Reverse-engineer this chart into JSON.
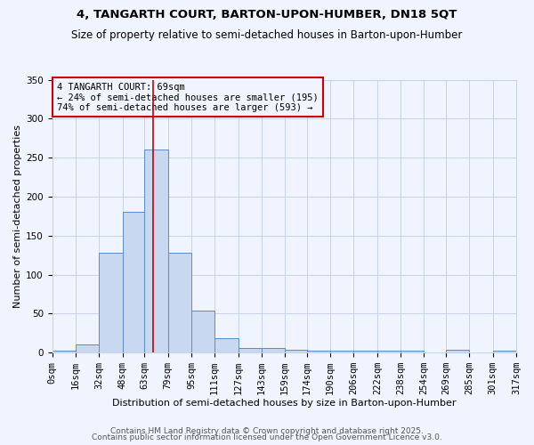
{
  "title1": "4, TANGARTH COURT, BARTON-UPON-HUMBER, DN18 5QT",
  "title2": "Size of property relative to semi-detached houses in Barton-upon-Humber",
  "xlabel": "Distribution of semi-detached houses by size in Barton-upon-Humber",
  "ylabel": "Number of semi-detached properties",
  "bin_edges": [
    0,
    16,
    32,
    48,
    63,
    79,
    95,
    111,
    127,
    143,
    159,
    174,
    190,
    206,
    222,
    238,
    254,
    269,
    285,
    301,
    317
  ],
  "bin_labels": [
    "0sqm",
    "16sqm",
    "32sqm",
    "48sqm",
    "63sqm",
    "79sqm",
    "95sqm",
    "111sqm",
    "127sqm",
    "143sqm",
    "159sqm",
    "174sqm",
    "190sqm",
    "206sqm",
    "222sqm",
    "238sqm",
    "254sqm",
    "269sqm",
    "285sqm",
    "301sqm",
    "317sqm"
  ],
  "counts": [
    2,
    10,
    128,
    180,
    260,
    128,
    54,
    18,
    6,
    6,
    4,
    2,
    2,
    2,
    2,
    2,
    0,
    3,
    0,
    2
  ],
  "bar_facecolor": "#c8d8f0",
  "bar_edgecolor": "#5b8cc8",
  "vline_x": 69,
  "vline_color": "#cc0000",
  "annotation_text": "4 TANGARTH COURT: 69sqm\n← 24% of semi-detached houses are smaller (195)\n74% of semi-detached houses are larger (593) →",
  "annotation_box_color": "#cc0000",
  "ylim": [
    0,
    350
  ],
  "yticks": [
    0,
    50,
    100,
    150,
    200,
    250,
    300,
    350
  ],
  "grid_color": "#c8d4e8",
  "bg_color": "#f0f4ff",
  "footer1": "Contains HM Land Registry data © Crown copyright and database right 2025.",
  "footer2": "Contains public sector information licensed under the Open Government Licence v3.0.",
  "title1_fontsize": 9.5,
  "title2_fontsize": 8.5,
  "xlabel_fontsize": 8,
  "ylabel_fontsize": 8,
  "tick_fontsize": 7.5,
  "footer_fontsize": 6.5,
  "annot_fontsize": 7.5
}
